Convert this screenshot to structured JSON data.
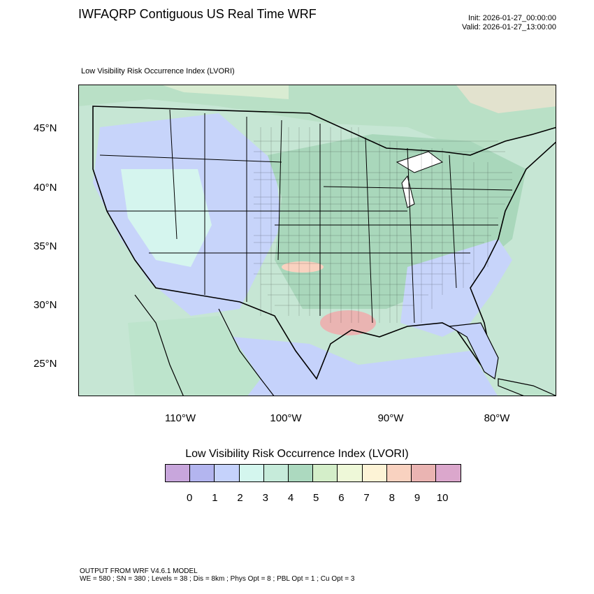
{
  "header": {
    "title": "IWFAQRP Contiguous US Real Time WRF",
    "init": "Init: 2026-01-27_00:00:00",
    "valid": "Valid: 2026-01-27_13:00:00"
  },
  "map": {
    "subtitle": "Low Visibility Risk Occurrence Index   (LVORI)",
    "lat_labels": [
      "45°N",
      "40°N",
      "35°N",
      "30°N",
      "25°N"
    ],
    "lon_labels": [
      "110°W",
      "100°W",
      "90°W",
      "80°W"
    ]
  },
  "colorbar": {
    "title": "Low Visibility Risk Occurrence Index  (LVORI)",
    "labels": [
      "0",
      "1",
      "2",
      "3",
      "4",
      "5",
      "6",
      "7",
      "8",
      "9",
      "10"
    ],
    "colors": [
      "#c8a6dc",
      "#b3b5ef",
      "#c5d2fb",
      "#d4f6ee",
      "#c6ebda",
      "#acd9bf",
      "#d4eec9",
      "#eef8d8",
      "#fdf3d6",
      "#f9d2c0",
      "#eab4b2",
      "#dba7cc"
    ]
  },
  "footer": {
    "line1": "OUTPUT FROM WRF V4.6.1 MODEL",
    "line2": "WE = 580 ; SN = 380 ; Levels = 38 ; Dis = 8km ; Phys Opt = 8 ; PBL Opt = 1 ; Cu Opt = 3"
  }
}
